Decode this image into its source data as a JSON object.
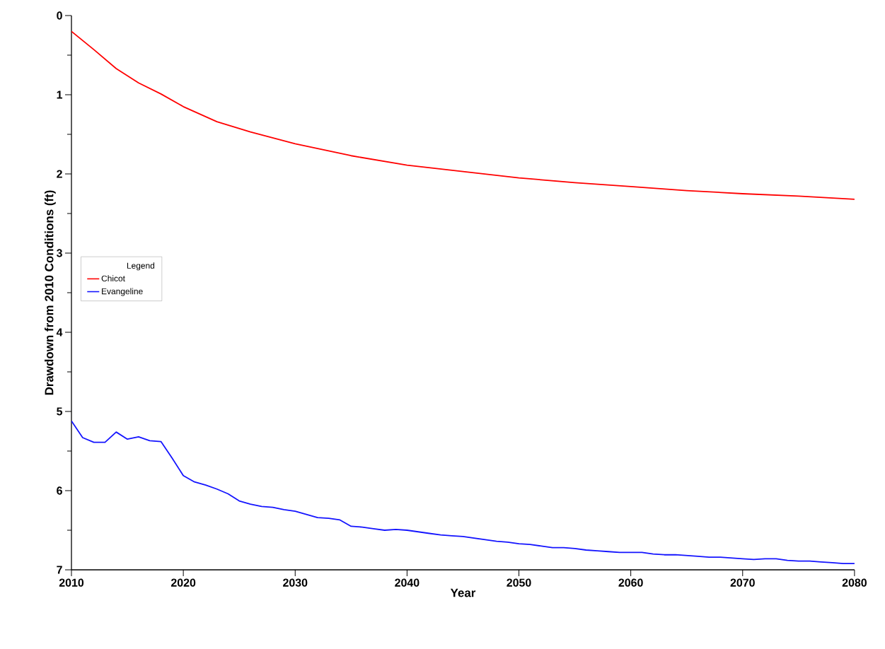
{
  "chart_data": {
    "type": "line",
    "xlabel": "Year",
    "ylabel": "Drawdown from 2010 Conditions (ft)",
    "legend_title": "Legend",
    "legend": "left",
    "grid": false,
    "xlim": [
      2010,
      2080
    ],
    "xticks": [
      2010,
      2020,
      2030,
      2040,
      2050,
      2060,
      2070,
      2080
    ],
    "ylim": [
      7,
      0
    ],
    "yticks": [
      0,
      1,
      2,
      3,
      4,
      5,
      6,
      7
    ],
    "series": [
      {
        "name": "Chicot",
        "color": "#ff0000",
        "x": [
          2010,
          2012,
          2014,
          2016,
          2018,
          2020,
          2023,
          2026,
          2030,
          2035,
          2040,
          2045,
          2050,
          2055,
          2060,
          2065,
          2070,
          2075,
          2080
        ],
        "values": [
          0.2,
          0.43,
          0.67,
          0.85,
          0.99,
          1.15,
          1.34,
          1.47,
          1.62,
          1.77,
          1.89,
          1.97,
          2.05,
          2.11,
          2.16,
          2.21,
          2.25,
          2.28,
          2.32
        ]
      },
      {
        "name": "Evangeline",
        "color": "#1414ff",
        "x": [
          2010,
          2011,
          2012,
          2013,
          2014,
          2015,
          2016,
          2017,
          2018,
          2019,
          2020,
          2021,
          2022,
          2023,
          2024,
          2025,
          2026,
          2027,
          2028,
          2029,
          2030,
          2031,
          2032,
          2033,
          2034,
          2035,
          2036,
          2037,
          2038,
          2039,
          2040,
          2041,
          2042,
          2043,
          2044,
          2045,
          2046,
          2047,
          2048,
          2049,
          2050,
          2051,
          2052,
          2053,
          2054,
          2055,
          2056,
          2057,
          2058,
          2059,
          2060,
          2061,
          2062,
          2063,
          2064,
          2065,
          2066,
          2067,
          2068,
          2069,
          2070,
          2071,
          2072,
          2073,
          2074,
          2075,
          2076,
          2077,
          2078,
          2079,
          2080
        ],
        "values": [
          5.12,
          5.33,
          5.39,
          5.39,
          5.26,
          5.35,
          5.32,
          5.37,
          5.38,
          5.59,
          5.81,
          5.89,
          5.93,
          5.98,
          6.04,
          6.13,
          6.17,
          6.2,
          6.21,
          6.24,
          6.26,
          6.3,
          6.34,
          6.35,
          6.37,
          6.45,
          6.46,
          6.48,
          6.5,
          6.49,
          6.5,
          6.52,
          6.54,
          6.56,
          6.57,
          6.58,
          6.6,
          6.62,
          6.64,
          6.65,
          6.67,
          6.68,
          6.7,
          6.72,
          6.72,
          6.73,
          6.75,
          6.76,
          6.77,
          6.78,
          6.78,
          6.78,
          6.8,
          6.81,
          6.81,
          6.82,
          6.83,
          6.84,
          6.84,
          6.85,
          6.86,
          6.87,
          6.86,
          6.86,
          6.88,
          6.89,
          6.89,
          6.9,
          6.91,
          6.92,
          6.92
        ]
      }
    ]
  }
}
